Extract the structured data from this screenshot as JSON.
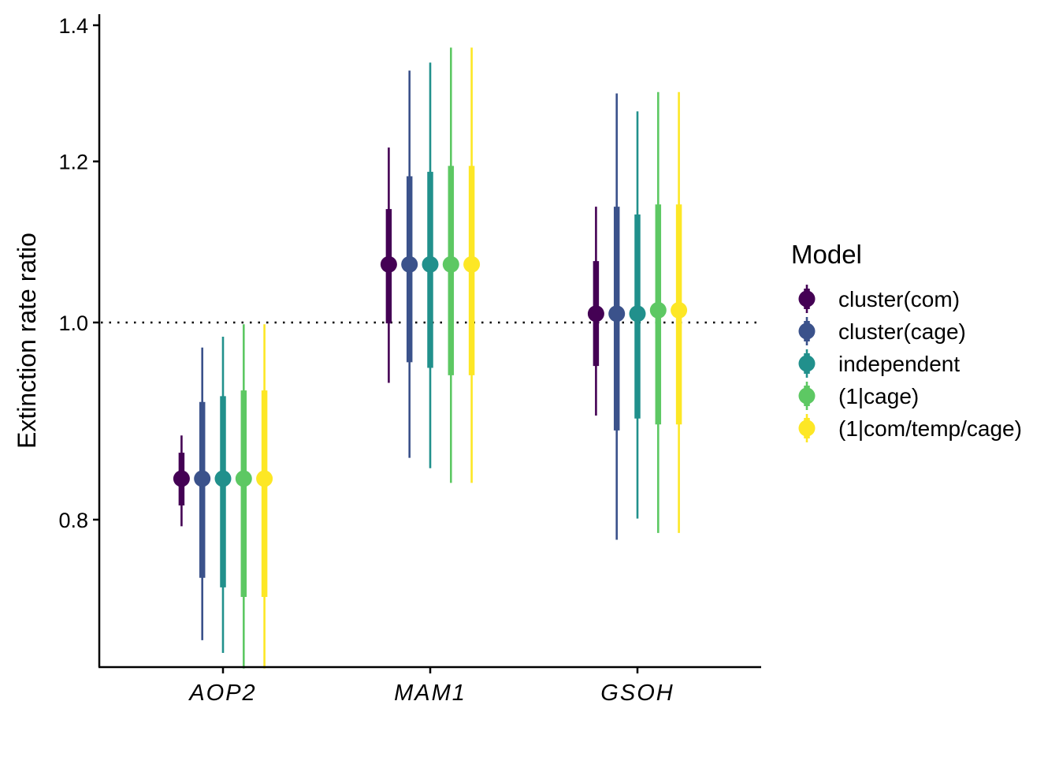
{
  "chart_data": {
    "type": "pointrange",
    "ylabel": "Extinction rate ratio",
    "y_scale": "log",
    "ylim": [
      0.66,
      1.415
    ],
    "y_ticks": [
      "0.8",
      "1.0",
      "1.2",
      "1.4"
    ],
    "reference_line": {
      "y": 1.0,
      "style": "dotted"
    },
    "categories": [
      "AOP2",
      "MAM1",
      "GSOH"
    ],
    "legend": {
      "title": "Model",
      "placement": "right"
    },
    "series": [
      {
        "name": "cluster(com)",
        "color": "#440154",
        "estimate": [
          0.838,
          1.068,
          1.01
        ],
        "inner_low": [
          0.813,
          0.999,
          0.952
        ],
        "inner_high": [
          0.863,
          1.137,
          1.072
        ],
        "outer_low": [
          0.794,
          0.934,
          0.9
        ],
        "outer_high": [
          0.88,
          1.219,
          1.14
        ]
      },
      {
        "name": "cluster(cage)",
        "color": "#3B528B",
        "estimate": [
          0.838,
          1.068,
          1.01
        ],
        "inner_low": [
          0.749,
          0.956,
          0.885
        ],
        "inner_high": [
          0.914,
          1.18,
          1.14
        ],
        "outer_low": [
          0.698,
          0.858,
          0.782
        ],
        "outer_high": [
          0.972,
          1.33,
          1.296
        ]
      },
      {
        "name": "independent",
        "color": "#21908C",
        "estimate": [
          0.838,
          1.068,
          1.01
        ],
        "inner_low": [
          0.741,
          0.95,
          0.897
        ],
        "inner_high": [
          0.92,
          1.186,
          1.13
        ],
        "outer_low": [
          0.688,
          0.848,
          0.801
        ],
        "outer_high": [
          0.984,
          1.342,
          1.27
        ]
      },
      {
        "name": "(1|cage)",
        "color": "#5DC863",
        "estimate": [
          0.838,
          1.068,
          1.014
        ],
        "inner_low": [
          0.733,
          0.942,
          0.891
        ],
        "inner_high": [
          0.926,
          1.194,
          1.143
        ],
        "outer_low": [
          0.676,
          0.834,
          0.788
        ],
        "outer_high": [
          0.998,
          1.365,
          1.298
        ]
      },
      {
        "name": "(1|com/temp/cage)",
        "color": "#FDE725",
        "estimate": [
          0.838,
          1.068,
          1.014
        ],
        "inner_low": [
          0.733,
          0.942,
          0.891
        ],
        "inner_high": [
          0.926,
          1.194,
          1.143
        ],
        "outer_low": [
          0.676,
          0.834,
          0.788
        ],
        "outer_high": [
          0.998,
          1.365,
          1.298
        ]
      }
    ]
  }
}
